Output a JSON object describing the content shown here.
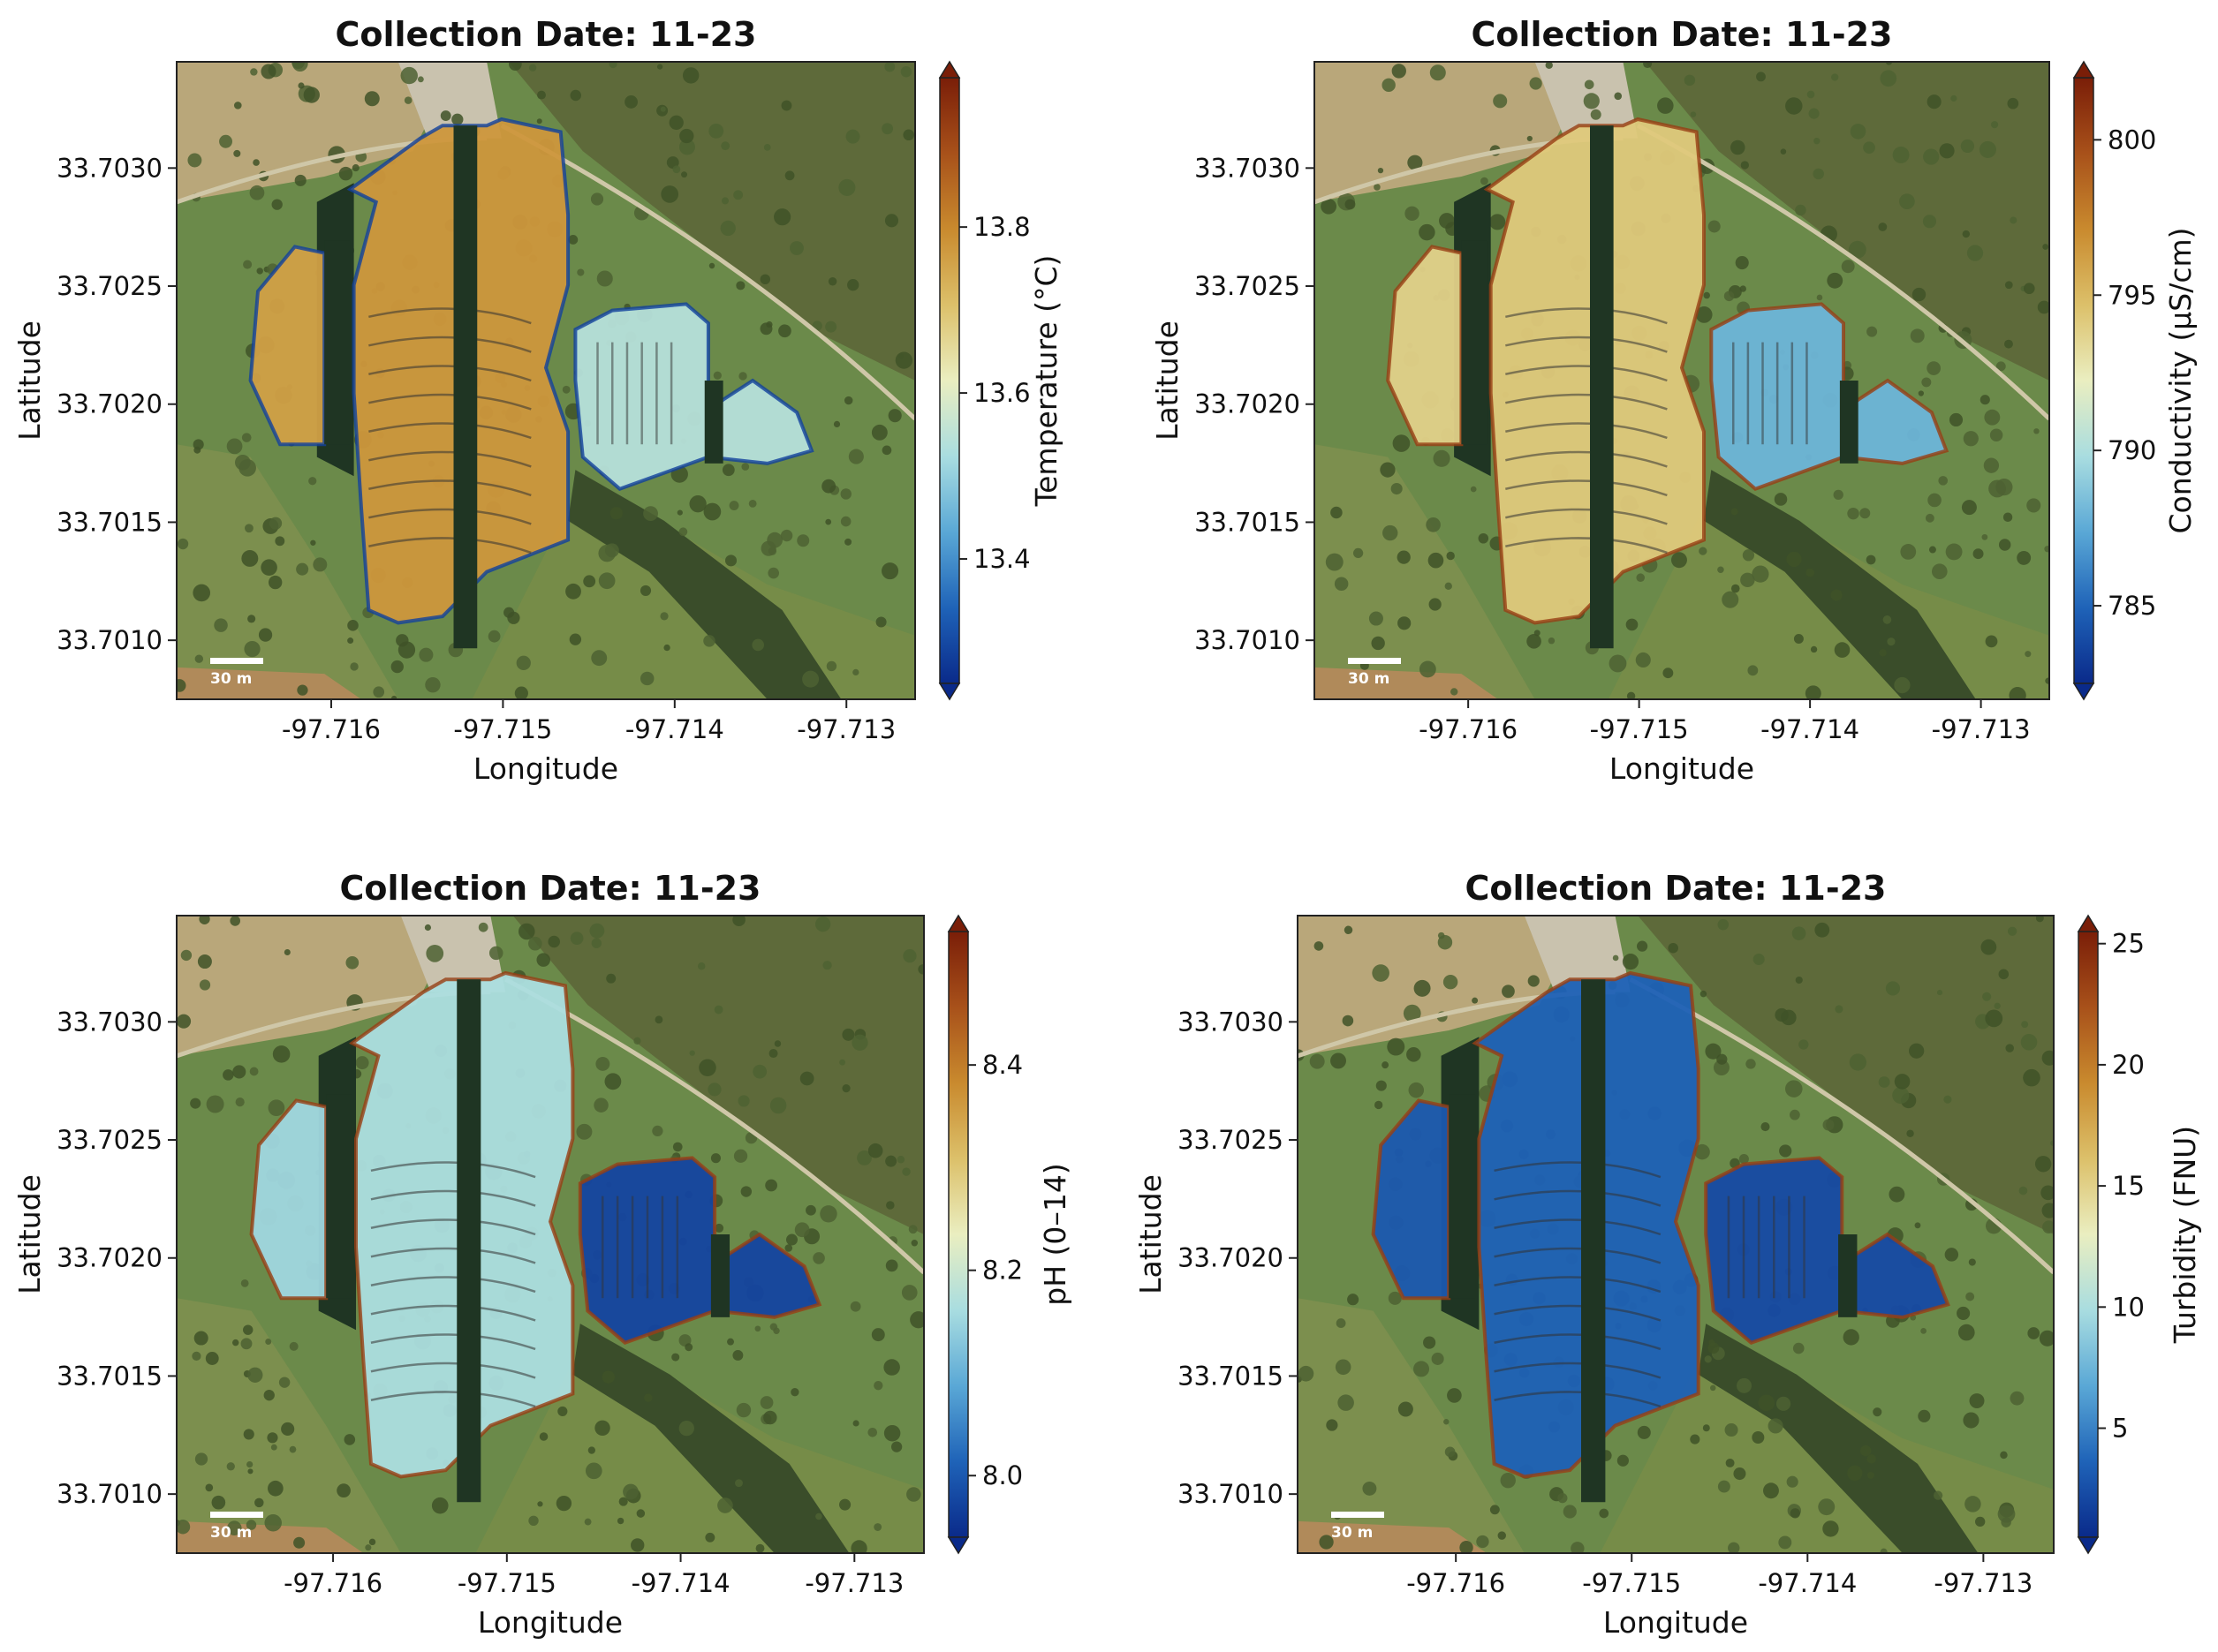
{
  "figure": {
    "scale_bar_label": "30 m"
  },
  "colormap": {
    "stops": [
      "#0a2a8a",
      "#1f63b8",
      "#5aa8d6",
      "#a9dde0",
      "#eaeec0",
      "#dcc06a",
      "#c98a2e",
      "#a8511a",
      "#7a1e08"
    ]
  },
  "chart_data": [
    {
      "type": "heatmap",
      "title": "Collection Date: 11-23",
      "xlabel": "Longitude",
      "ylabel": "Latitude",
      "xticks": [
        "-97.716",
        "-97.715",
        "-97.714",
        "-97.713"
      ],
      "yticks": [
        "33.7030",
        "33.7025",
        "33.7020",
        "33.7015",
        "33.7010"
      ],
      "xtick_values": [
        -97.716,
        -97.715,
        -97.714,
        -97.713
      ],
      "ytick_values": [
        33.703,
        33.7025,
        33.702,
        33.7015,
        33.701
      ],
      "xlim": [
        -97.7169,
        -97.7126
      ],
      "ylim": [
        33.70075,
        33.70345
      ],
      "colorbar": {
        "label": "Temperature (°C)",
        "ticks": [
          "13.4",
          "13.6",
          "13.8"
        ],
        "tick_values": [
          13.4,
          13.6,
          13.8
        ],
        "range": [
          13.25,
          13.98
        ]
      },
      "dominant_level": 0.72
    },
    {
      "type": "heatmap",
      "title": "Collection Date: 11-23",
      "xlabel": "Longitude",
      "ylabel": "Latitude",
      "xticks": [
        "-97.716",
        "-97.715",
        "-97.714",
        "-97.713"
      ],
      "yticks": [
        "33.7030",
        "33.7025",
        "33.7020",
        "33.7015",
        "33.7010"
      ],
      "xtick_values": [
        -97.716,
        -97.715,
        -97.714,
        -97.713
      ],
      "ytick_values": [
        33.703,
        33.7025,
        33.702,
        33.7015,
        33.701
      ],
      "xlim": [
        -97.7169,
        -97.7126
      ],
      "ylim": [
        33.70075,
        33.70345
      ],
      "colorbar": {
        "label": "Conductivity (μS/cm)",
        "ticks": [
          "785",
          "790",
          "795",
          "800"
        ],
        "tick_values": [
          785,
          790,
          795,
          800
        ],
        "range": [
          782.5,
          802
        ]
      },
      "dominant_level": 0.6
    },
    {
      "type": "heatmap",
      "title": "Collection Date: 11-23",
      "xlabel": "Longitude",
      "ylabel": "Latitude",
      "xticks": [
        "-97.716",
        "-97.715",
        "-97.714",
        "-97.713"
      ],
      "yticks": [
        "33.7030",
        "33.7025",
        "33.7020",
        "33.7015",
        "33.7010"
      ],
      "xtick_values": [
        -97.716,
        -97.715,
        -97.714,
        -97.713
      ],
      "ytick_values": [
        33.703,
        33.7025,
        33.702,
        33.7015,
        33.701
      ],
      "xlim": [
        -97.7169,
        -97.7126
      ],
      "ylim": [
        33.70075,
        33.70345
      ],
      "colorbar": {
        "label": "pH (0–14)",
        "ticks": [
          "8.0",
          "8.2",
          "8.4"
        ],
        "tick_values": [
          8.0,
          8.2,
          8.4
        ],
        "range": [
          7.94,
          8.53
        ]
      },
      "dominant_level": 0.38
    },
    {
      "type": "heatmap",
      "title": "Collection Date: 11-23",
      "xlabel": "Longitude",
      "ylabel": "Latitude",
      "xticks": [
        "-97.716",
        "-97.715",
        "-97.714",
        "-97.713"
      ],
      "yticks": [
        "33.7030",
        "33.7025",
        "33.7020",
        "33.7015",
        "33.7010"
      ],
      "xtick_values": [
        -97.716,
        -97.715,
        -97.714,
        -97.713
      ],
      "ytick_values": [
        33.703,
        33.7025,
        33.702,
        33.7015,
        33.701
      ],
      "xlim": [
        -97.7169,
        -97.7126
      ],
      "ylim": [
        33.70075,
        33.70345
      ],
      "colorbar": {
        "label": "Turbidity (FNU)",
        "ticks": [
          "5",
          "10",
          "15",
          "20",
          "25"
        ],
        "tick_values": [
          5,
          10,
          15,
          20,
          25
        ],
        "range": [
          0.5,
          25.5
        ]
      },
      "dominant_level": 0.12
    }
  ]
}
